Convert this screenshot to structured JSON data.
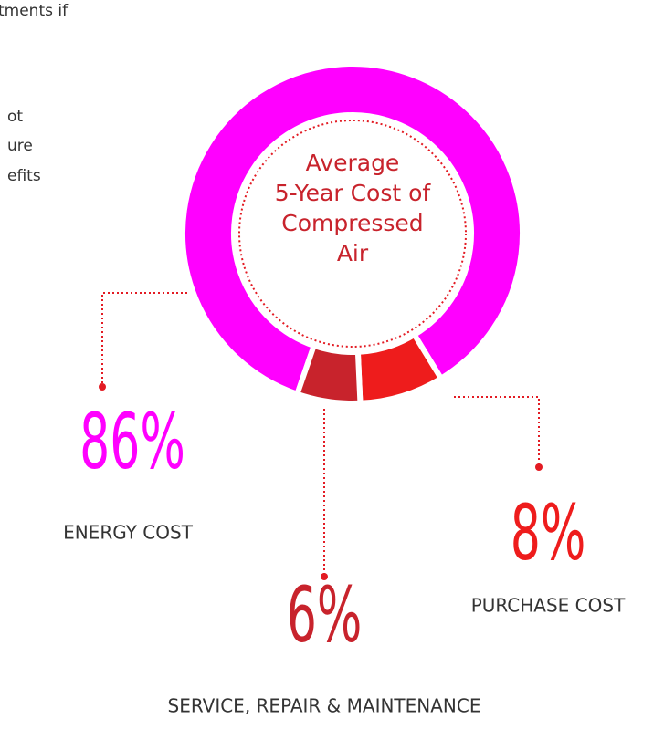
{
  "chart_data": {
    "type": "pie",
    "title": [
      "Average",
      "5-Year Cost of",
      "Compressed",
      "Air"
    ],
    "categories": [
      "ENERGY COST",
      "PURCHASE COST",
      "SERVICE, REPAIR & MAINTENANCE"
    ],
    "values": [
      86,
      8,
      6
    ],
    "value_labels": [
      "86%",
      "8%",
      "6%"
    ],
    "colors": [
      "#ff00ff",
      "#ee1c1c",
      "#c8232c"
    ],
    "donut": true
  },
  "annotations": [
    "tments if",
    "ot",
    "ure",
    "efits"
  ]
}
